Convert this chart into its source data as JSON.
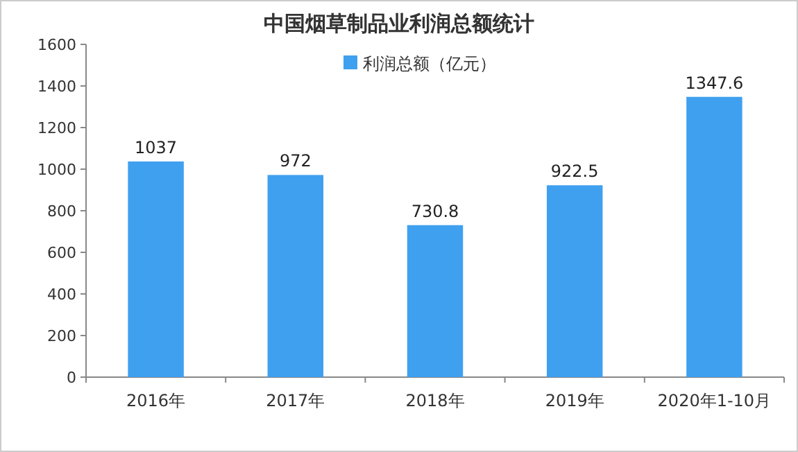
{
  "chart_data": {
    "type": "bar",
    "title": "中国烟草制品业利润总额统计",
    "categories": [
      "2016年",
      "2017年",
      "2018年",
      "2019年",
      "2020年1-10月"
    ],
    "series": [
      {
        "name": "利润总额（亿元）",
        "color": "#3fa0f0",
        "values": [
          1037,
          972,
          730.8,
          922.5,
          1347.6
        ]
      }
    ],
    "ylim": [
      0,
      1600
    ],
    "yticks": [
      0,
      200,
      400,
      600,
      800,
      1000,
      1200,
      1400,
      1600
    ],
    "data_labels": true,
    "legend": "top",
    "grid": false
  }
}
